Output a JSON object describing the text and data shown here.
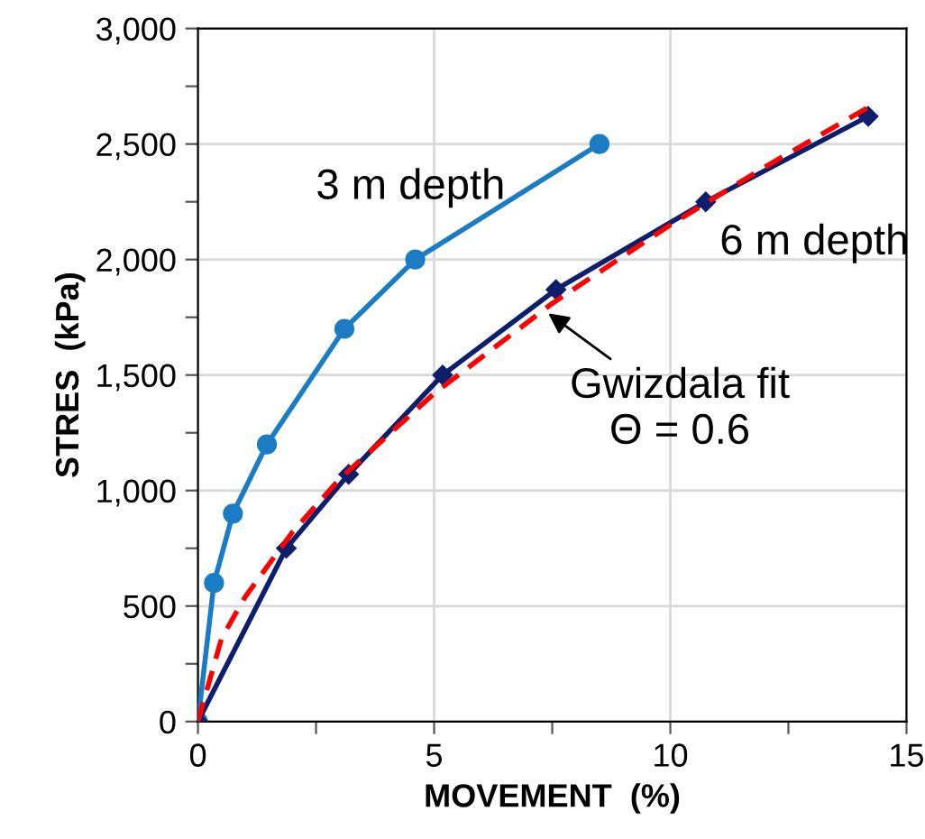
{
  "chart_data": {
    "type": "line",
    "xlabel": "MOVEMENT  (%)",
    "ylabel": "STRES  (kPa)",
    "xlim": [
      0,
      15
    ],
    "ylim": [
      0,
      3000
    ],
    "xticks": [
      0,
      {
        "value": 2.5,
        "label": null
      },
      5,
      {
        "value": 7.5,
        "label": null
      },
      10,
      {
        "value": 12.5,
        "label": null
      },
      15
    ],
    "yticks": [
      0,
      {
        "value": 250,
        "label": null
      },
      500,
      {
        "value": 750,
        "label": null
      },
      {
        "value": 1000,
        "label": "1,000"
      },
      {
        "value": 1250,
        "label": null
      },
      {
        "value": 1500,
        "label": "1,500"
      },
      {
        "value": 1750,
        "label": null
      },
      {
        "value": 2000,
        "label": "2,000"
      },
      {
        "value": 2250,
        "label": null
      },
      {
        "value": 2500,
        "label": "2,500"
      },
      {
        "value": 2750,
        "label": null
      },
      {
        "value": 3000,
        "label": "3,000"
      }
    ],
    "grid": true,
    "legend": false,
    "series": [
      {
        "name": "3 m depth",
        "color": "#1a7cc4",
        "marker": "circle",
        "x": [
          0,
          0.34,
          0.74,
          1.46,
          3.1,
          4.6,
          8.5
        ],
        "values": [
          0,
          600,
          900,
          1200,
          1700,
          2000,
          2500
        ]
      },
      {
        "name": "6 m depth",
        "color": "#0d1f6b",
        "marker": "diamond",
        "x": [
          0,
          1.87,
          3.19,
          5.18,
          7.58,
          10.75,
          14.19
        ],
        "values": [
          0,
          750,
          1070,
          1500,
          1870,
          2250,
          2620
        ]
      },
      {
        "color": "#ff0000",
        "marker": "none",
        "line_style": "dashed",
        "x": [
          0,
          0.5,
          1,
          2,
          3,
          5,
          7.5,
          10,
          12,
          14.2
        ],
        "values": [
          0,
          360,
          540,
          820,
          1050,
          1420,
          1810,
          2150,
          2400,
          2660
        ]
      }
    ],
    "annotations": [
      {
        "text": "Gwizdala fit\nΘ = 0.6",
        "x": 7.33,
        "y": 1780
      }
    ]
  }
}
